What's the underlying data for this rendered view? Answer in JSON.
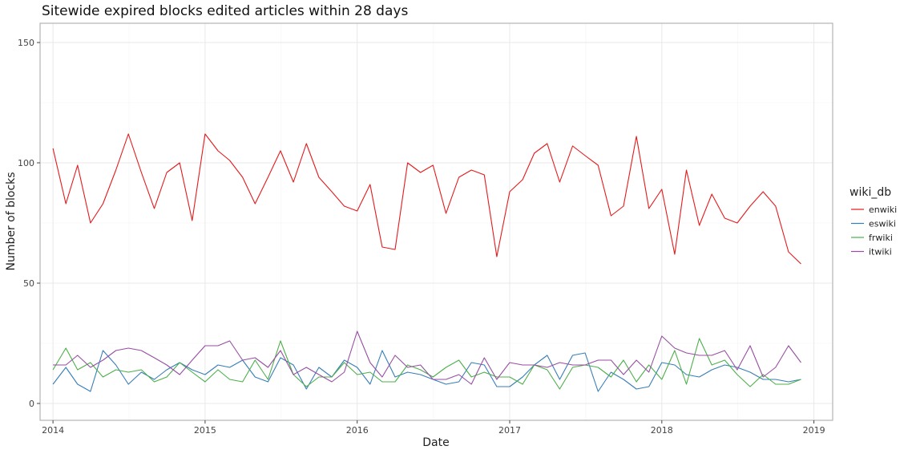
{
  "chart_data": {
    "type": "line",
    "title": "Sitewide expired blocks edited articles within 28 days",
    "xlabel": "Date",
    "ylabel": "Number of blocks",
    "x_ticks": [
      "2014",
      "2015",
      "2016",
      "2017",
      "2018",
      "2019"
    ],
    "y_ticks": [
      "0",
      "50",
      "100",
      "150"
    ],
    "xlim": [
      "2013-12-01",
      "2019-02-15"
    ],
    "ylim": [
      -7,
      158
    ],
    "grid": true,
    "legend": {
      "title": "wiki_db",
      "position": "right"
    },
    "x": [
      "2014-01",
      "2014-02",
      "2014-03",
      "2014-04",
      "2014-05",
      "2014-06",
      "2014-07",
      "2014-08",
      "2014-09",
      "2014-10",
      "2014-11",
      "2014-12",
      "2015-01",
      "2015-02",
      "2015-03",
      "2015-04",
      "2015-05",
      "2015-06",
      "2015-07",
      "2015-08",
      "2015-09",
      "2015-10",
      "2015-11",
      "2015-12",
      "2016-01",
      "2016-02",
      "2016-03",
      "2016-04",
      "2016-05",
      "2016-06",
      "2016-07",
      "2016-08",
      "2016-09",
      "2016-10",
      "2016-11",
      "2016-12",
      "2017-01",
      "2017-02",
      "2017-03",
      "2017-04",
      "2017-05",
      "2017-06",
      "2017-07",
      "2017-08",
      "2017-09",
      "2017-10",
      "2017-11",
      "2017-12",
      "2018-01",
      "2018-02",
      "2018-03",
      "2018-04",
      "2018-05",
      "2018-06",
      "2018-07",
      "2018-08",
      "2018-09",
      "2018-10",
      "2018-11",
      "2018-12"
    ],
    "series": [
      {
        "name": "enwiki",
        "color": "#e41a1c",
        "values": [
          106,
          83,
          99,
          75,
          83,
          97,
          112,
          96,
          81,
          96,
          100,
          76,
          112,
          105,
          101,
          94,
          83,
          94,
          105,
          92,
          108,
          94,
          88,
          82,
          80,
          91,
          65,
          64,
          100,
          96,
          99,
          79,
          94,
          97,
          95,
          61,
          88,
          93,
          104,
          108,
          92,
          107,
          103,
          99,
          78,
          82,
          111,
          81,
          89,
          62,
          97,
          74,
          87,
          77,
          75,
          82,
          88,
          82,
          63,
          58
        ]
      },
      {
        "name": "eswiki",
        "color": "#377eb8",
        "values": [
          8,
          15,
          8,
          5,
          22,
          16,
          8,
          13,
          10,
          14,
          17,
          14,
          12,
          16,
          15,
          18,
          11,
          9,
          19,
          16,
          6,
          15,
          11,
          18,
          15,
          8,
          22,
          11,
          13,
          12,
          10,
          8,
          9,
          17,
          16,
          7,
          7,
          11,
          16,
          20,
          10,
          20,
          21,
          5,
          13,
          10,
          6,
          7,
          17,
          16,
          12,
          11,
          14,
          16,
          15,
          13,
          10,
          10,
          9,
          10
        ]
      },
      {
        "name": "frwiki",
        "color": "#4daf4a",
        "values": [
          14,
          23,
          14,
          17,
          11,
          14,
          13,
          14,
          9,
          11,
          17,
          13,
          9,
          14,
          10,
          9,
          18,
          10,
          26,
          12,
          7,
          11,
          11,
          17,
          12,
          13,
          9,
          9,
          16,
          14,
          11,
          15,
          18,
          11,
          13,
          11,
          11,
          8,
          16,
          14,
          6,
          15,
          16,
          15,
          11,
          18,
          9,
          16,
          10,
          22,
          8,
          27,
          16,
          18,
          12,
          7,
          12,
          8,
          8,
          10
        ]
      },
      {
        "name": "itwiki",
        "color": "#984ea3",
        "values": [
          16,
          16,
          20,
          15,
          18,
          22,
          23,
          22,
          19,
          16,
          12,
          18,
          24,
          24,
          26,
          18,
          19,
          15,
          22,
          12,
          15,
          12,
          9,
          13,
          30,
          17,
          11,
          20,
          15,
          16,
          10,
          10,
          12,
          8,
          19,
          10,
          17,
          16,
          16,
          15,
          17,
          16,
          16,
          18,
          18,
          12,
          18,
          13,
          28,
          23,
          21,
          20,
          20,
          22,
          14,
          24,
          11,
          15,
          24,
          17
        ]
      }
    ]
  }
}
